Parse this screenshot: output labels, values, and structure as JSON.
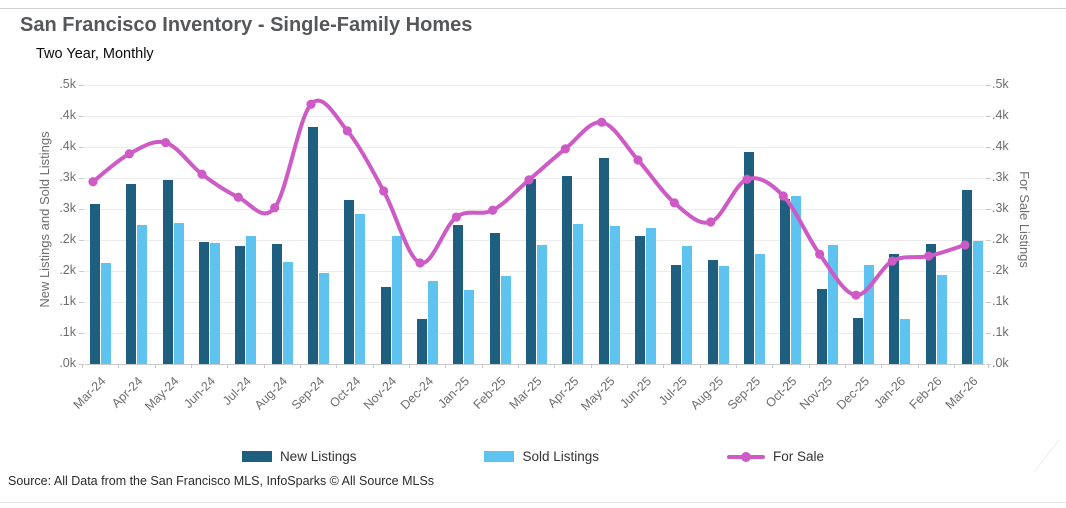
{
  "header": {
    "title": "San Francisco Inventory - Single-Family Homes",
    "subtitle": "Two Year, Monthly"
  },
  "chart_data": {
    "type": "combo",
    "categories": [
      "Mar-24",
      "Apr-24",
      "May-24",
      "Jun-24",
      "Jul-24",
      "Aug-24",
      "Sep-24",
      "Oct-24",
      "Nov-24",
      "Dec-24",
      "Jan-25",
      "Feb-25",
      "Mar-25",
      "Apr-25",
      "May-25",
      "Jun-25",
      "Jul-25",
      "Aug-25",
      "Sep-25",
      "Oct-25",
      "Nov-25",
      "Dec-25",
      "Jan-26",
      "Feb-26",
      "Mar-26"
    ],
    "series": [
      {
        "name": "New Listings",
        "type": "bar",
        "color": "#1e5e7e",
        "values": [
          0.258,
          0.29,
          0.296,
          0.197,
          0.19,
          0.194,
          0.382,
          0.265,
          0.124,
          0.073,
          0.224,
          0.212,
          0.298,
          0.303,
          0.332,
          0.206,
          0.16,
          0.168,
          0.342,
          0.266,
          0.121,
          0.074,
          0.177,
          0.194,
          0.281
        ]
      },
      {
        "name": "Sold Listings",
        "type": "bar",
        "color": "#5ec3ef",
        "values": [
          0.163,
          0.224,
          0.227,
          0.195,
          0.206,
          0.165,
          0.147,
          0.242,
          0.207,
          0.134,
          0.12,
          0.142,
          0.192,
          0.226,
          0.223,
          0.219,
          0.19,
          0.158,
          0.177,
          0.271,
          0.192,
          0.16,
          0.073,
          0.143,
          0.198
        ]
      },
      {
        "name": "For Sale",
        "type": "line",
        "color": "#ce5ac6",
        "values": [
          0.294,
          0.339,
          0.357,
          0.306,
          0.269,
          0.252,
          0.419,
          0.376,
          0.279,
          0.163,
          0.237,
          0.248,
          0.297,
          0.347,
          0.39,
          0.329,
          0.26,
          0.229,
          0.298,
          0.271,
          0.177,
          0.111,
          0.166,
          0.174,
          0.192
        ]
      }
    ],
    "unit": "k",
    "ylim": [
      0,
      0.45
    ],
    "y_tick_step": 0.05,
    "y_tick_labels_top_to_bottom": [
      ".5k",
      ".4k",
      ".4k",
      ".3k",
      ".3k",
      ".2k",
      ".2k",
      ".1k",
      ".1k",
      ".0k"
    ],
    "y_tick_values_top_to_bottom": [
      0.45,
      0.4,
      0.35,
      0.3,
      0.25,
      0.2,
      0.15,
      0.1,
      0.05,
      0
    ],
    "ylabel_left": "New Listings and Sold Listings",
    "ylabel_right": "For Sale Listings",
    "grid": "horizontal",
    "legend_position": "bottom"
  },
  "legend": {
    "items": [
      {
        "label": "New Listings"
      },
      {
        "label": "Sold Listings"
      },
      {
        "label": "For Sale"
      }
    ]
  },
  "footer": {
    "source": "Source: All Data from the San Francisco MLS, InfoSparks © All Source MLSs"
  },
  "colors": {
    "new_listings": "#1e5e7e",
    "sold_listings": "#5ec3ef",
    "for_sale": "#ce5ac6",
    "grid": "#ececec",
    "axis_text": "#6d6e71",
    "title_text": "#56575b"
  }
}
